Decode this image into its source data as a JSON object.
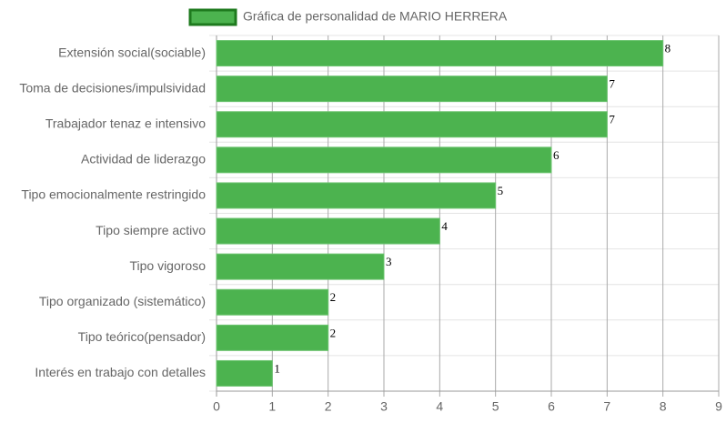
{
  "chart_data": {
    "type": "bar",
    "orientation": "horizontal",
    "categories": [
      "Extensión social(sociable)",
      "Toma de decisiones/impulsividad",
      "Trabajador tenaz e intensivo",
      "Actividad de liderazgo",
      "Tipo emocionalmente restringido",
      "Tipo siempre activo",
      "Tipo vigoroso",
      "Tipo organizado (sistemático)",
      "Tipo teórico(pensador)",
      "Interés en trabajo con detalles"
    ],
    "series": [
      {
        "name": "Gráfica de personalidad de MARIO HERRERA",
        "color": "#4cb34f",
        "border": "#1e7a1e",
        "values": [
          8,
          7,
          7,
          6,
          5,
          4,
          3,
          2,
          2,
          1
        ]
      }
    ],
    "xlim": [
      0,
      9
    ],
    "xticks": [
      0,
      1,
      2,
      3,
      4,
      5,
      6,
      7,
      8,
      9
    ],
    "grid": true
  }
}
